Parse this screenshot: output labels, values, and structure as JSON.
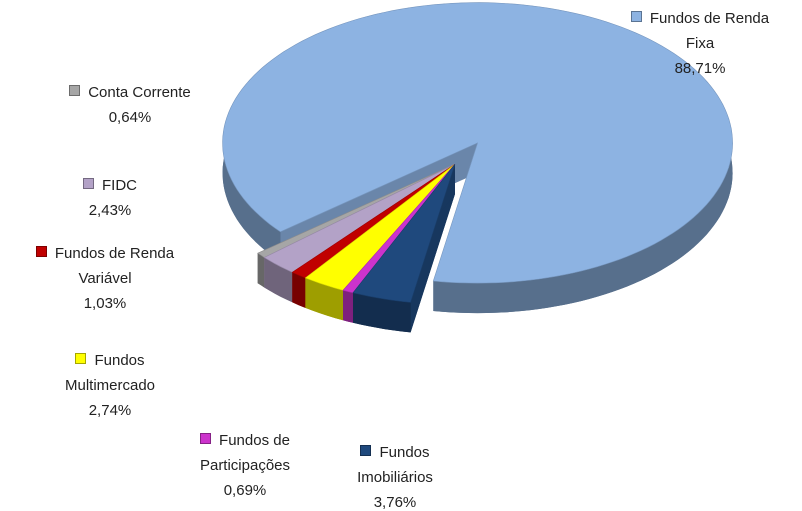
{
  "chart_data": {
    "type": "pie3d",
    "categories": [
      "Fundos Imobiliários",
      "Fundos de Participações",
      "Fundos Multimercado",
      "Fundos de Renda Variável",
      "FIDC",
      "Conta Corrente",
      "Fundos de Renda Fixa"
    ],
    "values": [
      3.76,
      0.69,
      2.74,
      1.03,
      2.43,
      0.64,
      88.71
    ],
    "value_labels": [
      "3,76%",
      "0,69%",
      "2,74%",
      "1,03%",
      "2,43%",
      "0,64%",
      "88,71%"
    ],
    "colors": [
      "#1f497d",
      "#cc33cc",
      "#ffff00",
      "#c00000",
      "#b3a2c7",
      "#a6a6a6",
      "#8db3e2"
    ]
  }
}
